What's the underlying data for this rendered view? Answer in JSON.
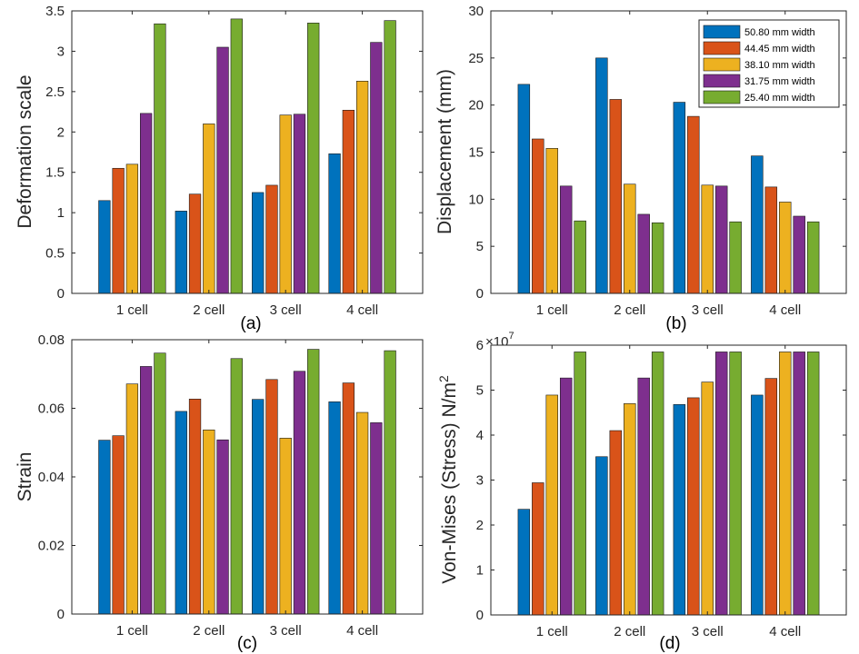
{
  "panel_labels": [
    "(a)",
    "(b)",
    "(c)",
    "(d)"
  ],
  "legend": {
    "items": [
      "50.80 mm width",
      "44.45 mm width",
      "38.10 mm width",
      "31.75 mm width",
      "25.40 mm width"
    ]
  },
  "colors": [
    "#0072BD",
    "#D95319",
    "#EDB120",
    "#7E2F8E",
    "#77AC30"
  ],
  "chart_data": [
    {
      "type": "bar",
      "categories": [
        "1 cell",
        "2 cell",
        "3 cell",
        "4 cell"
      ],
      "series": [
        {
          "name": "50.80 mm width",
          "values": [
            1.15,
            1.02,
            1.25,
            1.73
          ]
        },
        {
          "name": "44.45 mm width",
          "values": [
            1.55,
            1.23,
            1.34,
            2.27
          ]
        },
        {
          "name": "38.10 mm width",
          "values": [
            1.6,
            2.1,
            2.21,
            2.63
          ]
        },
        {
          "name": "31.75 mm width",
          "values": [
            2.23,
            3.05,
            2.22,
            3.11
          ]
        },
        {
          "name": "25.40 mm width",
          "values": [
            3.34,
            3.4,
            3.35,
            3.38
          ]
        }
      ],
      "ylabel": "Deformation scale",
      "ylim": [
        0,
        3.5
      ],
      "yticks": [
        "0",
        "0.5",
        "1",
        "1.5",
        "2",
        "2.5",
        "3",
        "3.5"
      ],
      "ytick_values": [
        0,
        0.5,
        1,
        1.5,
        2,
        2.5,
        3,
        3.5
      ],
      "legend": false
    },
    {
      "type": "bar",
      "categories": [
        "1 cell",
        "2 cell",
        "3 cell",
        "4 cell"
      ],
      "series": [
        {
          "name": "50.80 mm width",
          "values": [
            22.2,
            25.0,
            20.3,
            14.6
          ]
        },
        {
          "name": "44.45 mm width",
          "values": [
            16.4,
            20.6,
            18.8,
            11.3
          ]
        },
        {
          "name": "38.10 mm width",
          "values": [
            15.4,
            11.6,
            11.5,
            9.7
          ]
        },
        {
          "name": "31.75 mm width",
          "values": [
            11.4,
            8.4,
            11.4,
            8.2
          ]
        },
        {
          "name": "25.40 mm width",
          "values": [
            7.7,
            7.5,
            7.6,
            7.6
          ]
        }
      ],
      "ylabel": "Displacement (mm)",
      "ylim": [
        0,
        30
      ],
      "yticks": [
        "0",
        "5",
        "10",
        "15",
        "20",
        "25",
        "30"
      ],
      "ytick_values": [
        0,
        5,
        10,
        15,
        20,
        25,
        30
      ],
      "legend": "top-right"
    },
    {
      "type": "bar",
      "categories": [
        "1 cell",
        "2 cell",
        "3 cell",
        "4 cell"
      ],
      "series": [
        {
          "name": "50.80 mm width",
          "values": [
            0.0507,
            0.0591,
            0.0626,
            0.0619
          ]
        },
        {
          "name": "44.45 mm width",
          "values": [
            0.052,
            0.0627,
            0.0684,
            0.0674
          ]
        },
        {
          "name": "38.10 mm width",
          "values": [
            0.0671,
            0.0537,
            0.0513,
            0.0588
          ]
        },
        {
          "name": "31.75 mm width",
          "values": [
            0.0722,
            0.0508,
            0.0708,
            0.0558
          ]
        },
        {
          "name": "25.40 mm width",
          "values": [
            0.0761,
            0.0745,
            0.0772,
            0.0768
          ]
        }
      ],
      "ylabel": "Strain",
      "ylim": [
        0,
        0.08
      ],
      "yticks": [
        "0",
        "0.02",
        "0.04",
        "0.06",
        "0.08"
      ],
      "ytick_values": [
        0,
        0.02,
        0.04,
        0.06,
        0.08
      ],
      "legend": false
    },
    {
      "type": "bar",
      "categories": [
        "1 cell",
        "2 cell",
        "3 cell",
        "4 cell"
      ],
      "series": [
        {
          "name": "50.80 mm width",
          "values": [
            2.35,
            3.52,
            4.68,
            4.89
          ]
        },
        {
          "name": "44.45 mm width",
          "values": [
            2.94,
            4.1,
            4.83,
            5.26
          ]
        },
        {
          "name": "38.10 mm width",
          "values": [
            4.89,
            4.7,
            5.18,
            5.85
          ]
        },
        {
          "name": "31.75 mm width",
          "values": [
            5.27,
            5.27,
            5.85,
            5.85
          ]
        },
        {
          "name": "25.40 mm width",
          "values": [
            5.85,
            5.85,
            5.85,
            5.85
          ]
        }
      ],
      "ylabel": "Von-Mises (Stress) N/m",
      "ylabel_superscript": "2",
      "y_multiplier": "×10",
      "y_multiplier_exponent": "7",
      "ylim": [
        0,
        6
      ],
      "yticks": [
        "0",
        "1",
        "2",
        "3",
        "4",
        "5",
        "6"
      ],
      "ytick_values": [
        0,
        1,
        2,
        3,
        4,
        5,
        6
      ],
      "legend": false
    }
  ]
}
